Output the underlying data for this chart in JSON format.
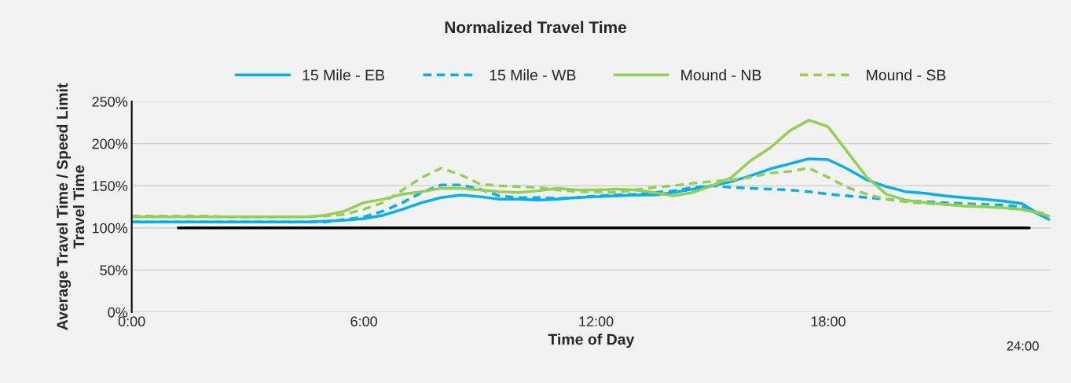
{
  "chart_data": {
    "type": "line",
    "title": "Normalized Travel Time",
    "xlabel": "Time of Day",
    "ylabel": "Average Travel Time / Speed Limit\nTravel Time",
    "x": [
      0,
      0.5,
      1,
      1.5,
      2,
      2.5,
      3,
      3.5,
      4,
      4.5,
      5,
      5.5,
      6,
      6.5,
      7,
      7.5,
      8,
      8.5,
      9,
      9.5,
      10,
      10.5,
      11,
      11.5,
      12,
      12.5,
      13,
      13.5,
      14,
      14.5,
      15,
      15.5,
      16,
      16.5,
      17,
      17.5,
      18,
      18.5,
      19,
      19.5,
      20,
      20.5,
      21,
      21.5,
      22,
      22.5,
      23,
      23.5,
      23.7
    ],
    "series": [
      {
        "name": "15 Mile - EB",
        "color": "#00b0f0",
        "line_style": "solid",
        "values": [
          107,
          107,
          107,
          107,
          107,
          107,
          107,
          107,
          107,
          107,
          108,
          109,
          111,
          115,
          122,
          130,
          136,
          139,
          137,
          134,
          134,
          133,
          134,
          136,
          137,
          138,
          139,
          139,
          142,
          146,
          150,
          155,
          162,
          170,
          176,
          182,
          181,
          170,
          157,
          149,
          143,
          141,
          138,
          136,
          134,
          132,
          129,
          115,
          110
        ]
      },
      {
        "name": "15 Mile - WB",
        "color": "#00b0f0",
        "line_style": "dashed",
        "values": [
          107,
          107,
          107,
          107,
          107,
          107,
          107,
          107,
          107,
          107,
          107,
          110,
          113,
          120,
          130,
          142,
          151,
          151,
          146,
          138,
          136,
          136,
          135,
          136,
          138,
          139,
          140,
          142,
          144,
          148,
          150,
          148,
          147,
          146,
          145,
          143,
          140,
          138,
          136,
          134,
          132,
          131,
          130,
          129,
          128,
          127,
          125,
          115,
          112
        ]
      },
      {
        "name": "Mound - NB",
        "color": "#92d050",
        "line_style": "solid",
        "values": [
          113,
          113,
          113,
          113,
          113,
          113,
          113,
          113,
          113,
          113,
          115,
          120,
          130,
          134,
          140,
          143,
          147,
          147,
          145,
          143,
          142,
          144,
          147,
          145,
          145,
          146,
          145,
          142,
          138,
          142,
          150,
          160,
          180,
          195,
          215,
          228,
          220,
          190,
          160,
          140,
          133,
          130,
          128,
          126,
          125,
          124,
          122,
          117,
          114
        ]
      },
      {
        "name": "Mound - SB",
        "color": "#92d050",
        "line_style": "dashed",
        "values": [
          114,
          114,
          114,
          114,
          114,
          113,
          113,
          113,
          113,
          113,
          114,
          116,
          122,
          130,
          145,
          160,
          171,
          163,
          152,
          150,
          149,
          148,
          145,
          143,
          143,
          142,
          145,
          148,
          150,
          153,
          155,
          157,
          160,
          165,
          167,
          171,
          160,
          148,
          140,
          134,
          131,
          129,
          128,
          127,
          126,
          124,
          122,
          118,
          116
        ]
      },
      {
        "color": "#000000",
        "line_style": "solid",
        "x": [
          1.2,
          23.2
        ],
        "values": [
          100,
          100
        ]
      }
    ],
    "xlim": [
      0,
      23.75
    ],
    "xticks": [
      {
        "value": 0,
        "label": "0:00"
      },
      {
        "value": 6,
        "label": "6:00"
      },
      {
        "value": 12,
        "label": "12:00"
      },
      {
        "value": 18,
        "label": "18:00"
      }
    ],
    "ylim": [
      0,
      250
    ],
    "yticks": [
      {
        "value": 0,
        "label": "0%"
      },
      {
        "value": 50,
        "label": "50%"
      },
      {
        "value": 100,
        "label": "100%"
      },
      {
        "value": 150,
        "label": "150%"
      },
      {
        "value": 200,
        "label": "200%"
      },
      {
        "value": 250,
        "label": "250%"
      }
    ],
    "grid": "y",
    "legend": "top",
    "marker": "none",
    "annotations": [
      "24:00"
    ]
  }
}
